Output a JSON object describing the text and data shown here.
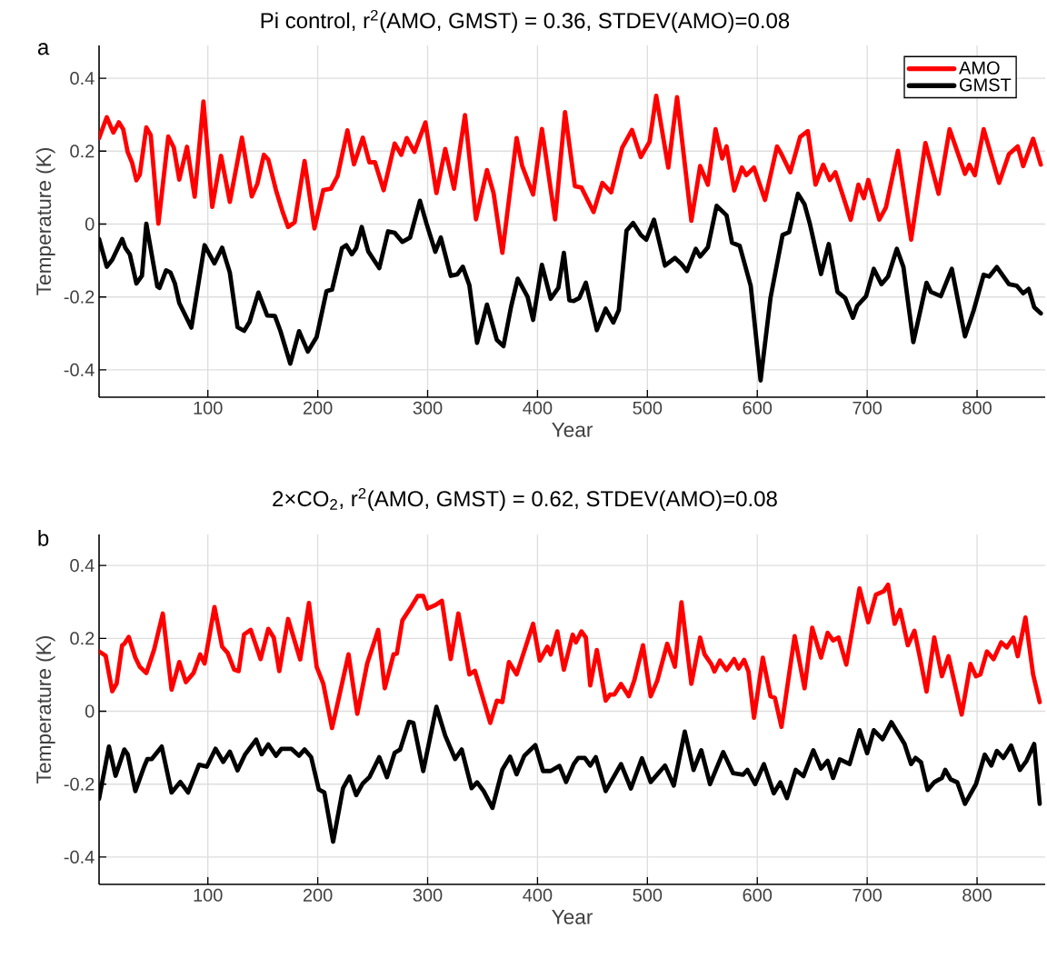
{
  "chart_data": [
    {
      "type": "line",
      "title": "Pi control, r$^{2}$(AMO, GMST) = 0.36, STDEV(AMO)=0.08",
      "xlabel": "Year",
      "ylabel": "Temperature (K)",
      "annotations": [
        "a"
      ],
      "xlim": [
        1,
        862
      ],
      "ylim": [
        -0.475,
        0.49
      ],
      "xticks": [
        100,
        200,
        300,
        400,
        500,
        600,
        700,
        800
      ],
      "yticks": [
        -0.4,
        -0.2,
        0,
        0.2,
        0.4
      ],
      "grid": true,
      "legend": "top right",
      "series": [
        {
          "name": "AMO",
          "color": "#ff0000",
          "x": [
            1,
            8,
            14,
            19,
            23,
            27,
            31,
            35,
            38,
            44,
            48,
            55,
            64,
            69,
            74,
            81,
            88,
            96,
            104,
            112,
            120,
            131,
            140,
            145,
            151,
            155,
            162,
            168,
            173,
            179,
            188,
            197,
            205,
            212,
            218,
            227,
            233,
            241,
            247,
            252,
            260,
            270,
            276,
            281,
            288,
            298,
            308,
            316,
            324,
            334,
            344,
            354,
            360,
            368,
            381,
            386,
            396,
            404,
            416,
            425,
            434,
            440,
            451,
            459,
            467,
            477,
            486,
            494,
            502,
            508,
            519,
            527,
            540,
            548,
            555,
            562,
            568,
            572,
            579,
            586,
            590,
            597,
            607,
            618,
            622,
            630,
            639,
            646,
            653,
            660,
            666,
            671,
            685,
            692,
            697,
            701,
            711,
            717,
            728,
            740,
            753,
            765,
            775,
            789,
            793,
            798,
            806,
            820,
            829,
            837,
            842,
            851,
            858
          ],
          "values": [
            0.236,
            0.293,
            0.251,
            0.279,
            0.26,
            0.198,
            0.169,
            0.12,
            0.135,
            0.265,
            0.244,
            0.001,
            0.24,
            0.21,
            0.122,
            0.212,
            0.075,
            0.336,
            0.047,
            0.187,
            0.061,
            0.237,
            0.076,
            0.11,
            0.19,
            0.177,
            0.093,
            0.034,
            -0.008,
            0.005,
            0.173,
            -0.012,
            0.093,
            0.097,
            0.131,
            0.257,
            0.164,
            0.237,
            0.169,
            0.17,
            0.093,
            0.221,
            0.19,
            0.236,
            0.198,
            0.279,
            0.085,
            0.206,
            0.097,
            0.299,
            0.013,
            0.148,
            0.085,
            -0.079,
            0.236,
            0.16,
            0.081,
            0.261,
            0.013,
            0.307,
            0.104,
            0.1,
            0.033,
            0.113,
            0.087,
            0.209,
            0.258,
            0.184,
            0.226,
            0.352,
            0.155,
            0.348,
            0.009,
            0.159,
            0.108,
            0.26,
            0.18,
            0.213,
            0.092,
            0.155,
            0.134,
            0.155,
            0.066,
            0.213,
            0.192,
            0.142,
            0.239,
            0.255,
            0.108,
            0.163,
            0.121,
            0.142,
            0.012,
            0.108,
            0.071,
            0.121,
            0.012,
            0.045,
            0.201,
            -0.043,
            0.222,
            0.083,
            0.26,
            0.138,
            0.163,
            0.134,
            0.26,
            0.113,
            0.192,
            0.213,
            0.159,
            0.234,
            0.163
          ]
        },
        {
          "name": "GMST",
          "color": "#000000",
          "x": [
            1,
            8,
            13,
            22,
            25,
            29,
            35,
            40,
            44,
            54,
            56,
            62,
            66,
            70,
            74,
            85,
            97,
            106,
            113,
            120,
            127,
            133,
            138,
            146,
            154,
            161,
            166,
            175,
            183,
            191,
            199,
            208,
            213,
            222,
            226,
            231,
            235,
            240,
            246,
            256,
            264,
            270,
            277,
            284,
            293,
            299,
            307,
            312,
            321,
            327,
            332,
            338,
            345,
            354,
            363,
            369,
            376,
            382,
            391,
            396,
            404,
            412,
            419,
            424,
            429,
            433,
            438,
            444,
            454,
            462,
            469,
            474,
            481,
            487,
            494,
            499,
            506,
            516,
            525,
            531,
            536,
            544,
            548,
            555,
            563,
            572,
            577,
            584,
            594,
            603,
            612,
            623,
            629,
            637,
            643,
            648,
            658,
            665,
            673,
            680,
            687,
            691,
            699,
            706,
            713,
            719,
            727,
            733,
            742,
            754,
            758,
            767,
            777,
            789,
            797,
            806,
            811,
            818,
            829,
            836,
            842,
            847,
            852,
            858
          ],
          "values": [
            -0.041,
            -0.117,
            -0.098,
            -0.041,
            -0.066,
            -0.083,
            -0.163,
            -0.142,
            0.001,
            -0.171,
            -0.175,
            -0.127,
            -0.133,
            -0.163,
            -0.217,
            -0.284,
            -0.058,
            -0.108,
            -0.065,
            -0.133,
            -0.283,
            -0.293,
            -0.268,
            -0.188,
            -0.251,
            -0.252,
            -0.293,
            -0.383,
            -0.294,
            -0.35,
            -0.31,
            -0.184,
            -0.18,
            -0.066,
            -0.058,
            -0.083,
            -0.066,
            -0.008,
            -0.075,
            -0.121,
            -0.02,
            -0.024,
            -0.049,
            -0.037,
            0.064,
            0.001,
            -0.076,
            -0.037,
            -0.142,
            -0.138,
            -0.117,
            -0.168,
            -0.326,
            -0.221,
            -0.318,
            -0.335,
            -0.226,
            -0.15,
            -0.2,
            -0.263,
            -0.112,
            -0.205,
            -0.175,
            -0.079,
            -0.209,
            -0.211,
            -0.203,
            -0.161,
            -0.291,
            -0.232,
            -0.27,
            -0.236,
            -0.018,
            0.003,
            -0.03,
            -0.043,
            0.012,
            -0.114,
            -0.093,
            -0.11,
            -0.129,
            -0.068,
            -0.089,
            -0.064,
            0.05,
            0.024,
            -0.051,
            -0.06,
            -0.169,
            -0.429,
            -0.203,
            -0.03,
            -0.022,
            0.083,
            0.054,
            -0.001,
            -0.137,
            -0.055,
            -0.186,
            -0.203,
            -0.257,
            -0.224,
            -0.198,
            -0.123,
            -0.165,
            -0.144,
            -0.068,
            -0.118,
            -0.324,
            -0.161,
            -0.186,
            -0.198,
            -0.123,
            -0.308,
            -0.236,
            -0.139,
            -0.144,
            -0.118,
            -0.165,
            -0.169,
            -0.19,
            -0.178,
            -0.228,
            -0.245
          ]
        }
      ]
    },
    {
      "type": "line",
      "title": "2×CO$_{2}$, r$^{2}$(AMO, GMST) = 0.62, STDEV(AMO)=0.08",
      "xlabel": "Year",
      "ylabel": "Temperature (K)",
      "annotations": [
        "b"
      ],
      "xlim": [
        1,
        862
      ],
      "ylim": [
        -0.475,
        0.485
      ],
      "xticks": [
        100,
        200,
        300,
        400,
        500,
        600,
        700,
        800
      ],
      "yticks": [
        -0.4,
        -0.2,
        0,
        0.2,
        0.4
      ],
      "grid": true,
      "series": [
        {
          "color": "#ff0000",
          "x": [
            1,
            7,
            13,
            17,
            22,
            24,
            28,
            34,
            38,
            44,
            51,
            59,
            67,
            74,
            80,
            87,
            93,
            97,
            106,
            113,
            118,
            124,
            128,
            133,
            139,
            148,
            155,
            160,
            165,
            173,
            184,
            192,
            199,
            205,
            213,
            219,
            228,
            236,
            245,
            255,
            261,
            269,
            272,
            277,
            285,
            291,
            296,
            300,
            307,
            313,
            321,
            328,
            338,
            343,
            357,
            363,
            368,
            374,
            381,
            396,
            402,
            409,
            412,
            418,
            424,
            432,
            435,
            440,
            444,
            448,
            454,
            462,
            466,
            470,
            476,
            483,
            488,
            496,
            503,
            509,
            518,
            525,
            531,
            540,
            548,
            552,
            558,
            561,
            566,
            572,
            579,
            583,
            588,
            592,
            597,
            605,
            612,
            616,
            622,
            634,
            643,
            650,
            658,
            664,
            669,
            674,
            681,
            693,
            701,
            708,
            715,
            719,
            725,
            730,
            737,
            743,
            748,
            754,
            761,
            768,
            774,
            786,
            794,
            799,
            803,
            809,
            815,
            822,
            827,
            833,
            837,
            844,
            851,
            857
          ],
          "values": [
            0.164,
            0.152,
            0.055,
            0.076,
            0.181,
            0.185,
            0.204,
            0.147,
            0.122,
            0.105,
            0.168,
            0.268,
            0.059,
            0.135,
            0.08,
            0.105,
            0.156,
            0.131,
            0.286,
            0.177,
            0.16,
            0.114,
            0.11,
            0.211,
            0.223,
            0.143,
            0.226,
            0.202,
            0.11,
            0.253,
            0.142,
            0.297,
            0.122,
            0.076,
            -0.046,
            0.034,
            0.156,
            -0.007,
            0.131,
            0.223,
            0.063,
            0.156,
            0.158,
            0.249,
            0.286,
            0.316,
            0.316,
            0.282,
            0.291,
            0.303,
            0.143,
            0.268,
            0.101,
            0.111,
            -0.032,
            0.029,
            0.025,
            0.135,
            0.101,
            0.24,
            0.139,
            0.177,
            0.156,
            0.219,
            0.114,
            0.21,
            0.189,
            0.219,
            0.202,
            0.071,
            0.168,
            0.029,
            0.046,
            0.046,
            0.075,
            0.041,
            0.084,
            0.181,
            0.041,
            0.084,
            0.185,
            0.122,
            0.299,
            0.075,
            0.202,
            0.156,
            0.13,
            0.109,
            0.139,
            0.113,
            0.143,
            0.117,
            0.141,
            0.109,
            -0.018,
            0.147,
            0.041,
            0.037,
            -0.043,
            0.206,
            0.063,
            0.229,
            0.147,
            0.215,
            0.194,
            0.202,
            0.128,
            0.337,
            0.244,
            0.32,
            0.329,
            0.347,
            0.24,
            0.278,
            0.181,
            0.221,
            0.147,
            0.054,
            0.202,
            0.096,
            0.151,
            -0.009,
            0.13,
            0.096,
            0.101,
            0.164,
            0.143,
            0.189,
            0.175,
            0.202,
            0.151,
            0.257,
            0.101,
            0.025
          ]
        },
        {
          "color": "#000000",
          "x": [
            1,
            10,
            16,
            24,
            27,
            34,
            42,
            45,
            49,
            58,
            67,
            75,
            82,
            92,
            99,
            107,
            114,
            120,
            127,
            134,
            144,
            149,
            155,
            162,
            167,
            176,
            183,
            188,
            194,
            201,
            206,
            214,
            223,
            229,
            235,
            241,
            247,
            256,
            263,
            270,
            275,
            283,
            287,
            296,
            308,
            316,
            325,
            331,
            340,
            345,
            351,
            359,
            368,
            375,
            381,
            388,
            398,
            405,
            412,
            420,
            426,
            433,
            437,
            443,
            448,
            453,
            462,
            476,
            485,
            495,
            503,
            516,
            524,
            534,
            542,
            549,
            557,
            569,
            578,
            587,
            591,
            598,
            606,
            615,
            621,
            627,
            635,
            642,
            651,
            658,
            664,
            669,
            675,
            684,
            693,
            700,
            706,
            714,
            722,
            728,
            734,
            740,
            744,
            749,
            755,
            761,
            768,
            771,
            776,
            782,
            789,
            799,
            807,
            813,
            818,
            824,
            831,
            839,
            845,
            852,
            857
          ],
          "values": [
            -0.24,
            -0.097,
            -0.177,
            -0.105,
            -0.118,
            -0.219,
            -0.152,
            -0.131,
            -0.131,
            -0.097,
            -0.223,
            -0.194,
            -0.223,
            -0.147,
            -0.152,
            -0.103,
            -0.139,
            -0.111,
            -0.162,
            -0.118,
            -0.078,
            -0.118,
            -0.091,
            -0.122,
            -0.103,
            -0.103,
            -0.122,
            -0.105,
            -0.126,
            -0.215,
            -0.223,
            -0.358,
            -0.211,
            -0.179,
            -0.23,
            -0.198,
            -0.181,
            -0.126,
            -0.181,
            -0.114,
            -0.105,
            -0.029,
            -0.032,
            -0.164,
            0.012,
            -0.067,
            -0.131,
            -0.105,
            -0.211,
            -0.195,
            -0.219,
            -0.265,
            -0.16,
            -0.125,
            -0.173,
            -0.122,
            -0.093,
            -0.164,
            -0.164,
            -0.15,
            -0.194,
            -0.145,
            -0.128,
            -0.128,
            -0.149,
            -0.126,
            -0.219,
            -0.145,
            -0.212,
            -0.129,
            -0.194,
            -0.149,
            -0.204,
            -0.056,
            -0.161,
            -0.107,
            -0.2,
            -0.112,
            -0.17,
            -0.174,
            -0.161,
            -0.2,
            -0.145,
            -0.225,
            -0.195,
            -0.238,
            -0.161,
            -0.178,
            -0.107,
            -0.157,
            -0.136,
            -0.183,
            -0.132,
            -0.145,
            -0.052,
            -0.115,
            -0.052,
            -0.077,
            -0.03,
            -0.06,
            -0.09,
            -0.145,
            -0.128,
            -0.14,
            -0.216,
            -0.195,
            -0.183,
            -0.161,
            -0.187,
            -0.195,
            -0.254,
            -0.2,
            -0.119,
            -0.149,
            -0.109,
            -0.128,
            -0.094,
            -0.161,
            -0.136,
            -0.09,
            -0.254
          ]
        }
      ]
    }
  ]
}
